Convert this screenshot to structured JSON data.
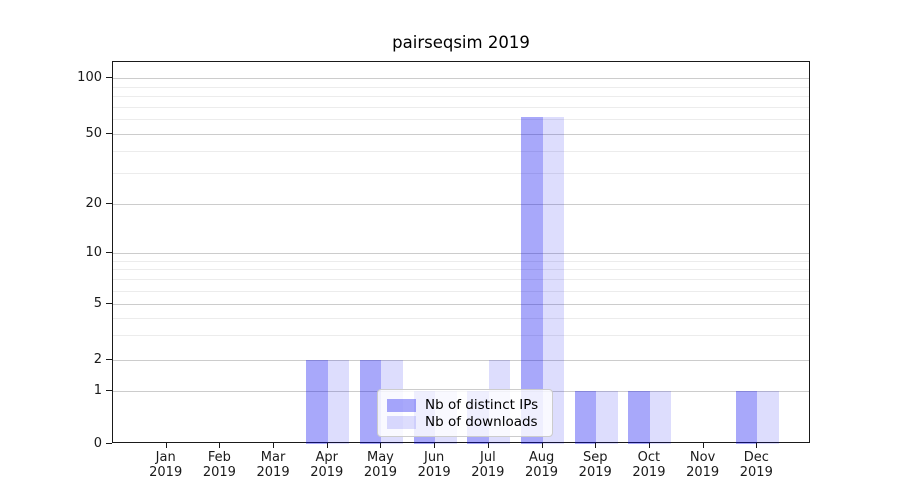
{
  "title": "pairseqsim 2019",
  "chart_data": {
    "type": "bar",
    "title": "pairseqsim 2019",
    "xlabel": "",
    "ylabel": "",
    "year_label": "2019",
    "categories": [
      "Jan",
      "Feb",
      "Mar",
      "Apr",
      "May",
      "Jun",
      "Jul",
      "Aug",
      "Sep",
      "Oct",
      "Nov",
      "Dec"
    ],
    "series": [
      {
        "name": "Nb of distinct IPs",
        "base_color": "#0000f0",
        "alpha": 0.34,
        "values": [
          0,
          0,
          0,
          2,
          2,
          1,
          1,
          62,
          1,
          1,
          0,
          1
        ]
      },
      {
        "name": "Nb of downloads",
        "base_color": "#0000f0",
        "alpha": 0.135,
        "values": [
          0,
          0,
          0,
          2,
          2,
          1,
          2,
          62,
          1,
          1,
          0,
          1
        ]
      }
    ],
    "yscale": "symlog",
    "yticks": [
      0,
      1,
      2,
      5,
      10,
      20,
      50,
      100
    ],
    "minor_gridlines": [
      3,
      4,
      6,
      7,
      8,
      9,
      30,
      40,
      60,
      70,
      80,
      90
    ],
    "ylim": [
      0,
      122
    ],
    "grid": true,
    "legend_position": "lower center"
  },
  "legend": {
    "items": [
      {
        "label": "Nb of distinct IPs"
      },
      {
        "label": "Nb of downloads"
      }
    ]
  },
  "colors": {
    "bar_dark_effective": "#a8a8f8",
    "bar_light_effective": "#dcdcfa",
    "grid_major": "#cccccc",
    "grid_minor": "#ececec",
    "spine": "#1a1a1a",
    "text": "#000000"
  }
}
